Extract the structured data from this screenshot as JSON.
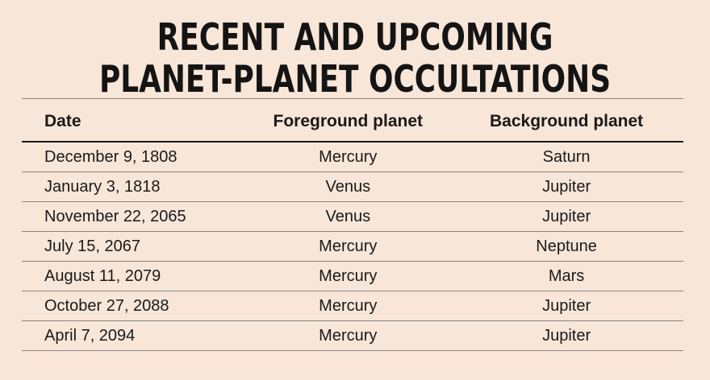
{
  "title": {
    "line1": "RECENT AND UPCOMING",
    "line2": "PLANET-PLANET OCCULTATIONS"
  },
  "table": {
    "headers": {
      "date": "Date",
      "foreground": "Foreground planet",
      "background": "Background planet"
    },
    "rows": [
      {
        "date": "December 9, 1808",
        "foreground": "Mercury",
        "background": "Saturn"
      },
      {
        "date": "January 3, 1818",
        "foreground": "Venus",
        "background": "Jupiter"
      },
      {
        "date": "November 22, 2065",
        "foreground": "Venus",
        "background": "Jupiter"
      },
      {
        "date": "July 15, 2067",
        "foreground": "Mercury",
        "background": "Neptune"
      },
      {
        "date": "August 11, 2079",
        "foreground": "Mercury",
        "background": "Mars"
      },
      {
        "date": "October 27, 2088",
        "foreground": "Mercury",
        "background": "Jupiter"
      },
      {
        "date": "April 7, 2094",
        "foreground": "Mercury",
        "background": "Jupiter"
      }
    ]
  },
  "colors": {
    "background": "#f8e6d8",
    "text": "#1a1a1a",
    "rule": "#8a8580"
  }
}
